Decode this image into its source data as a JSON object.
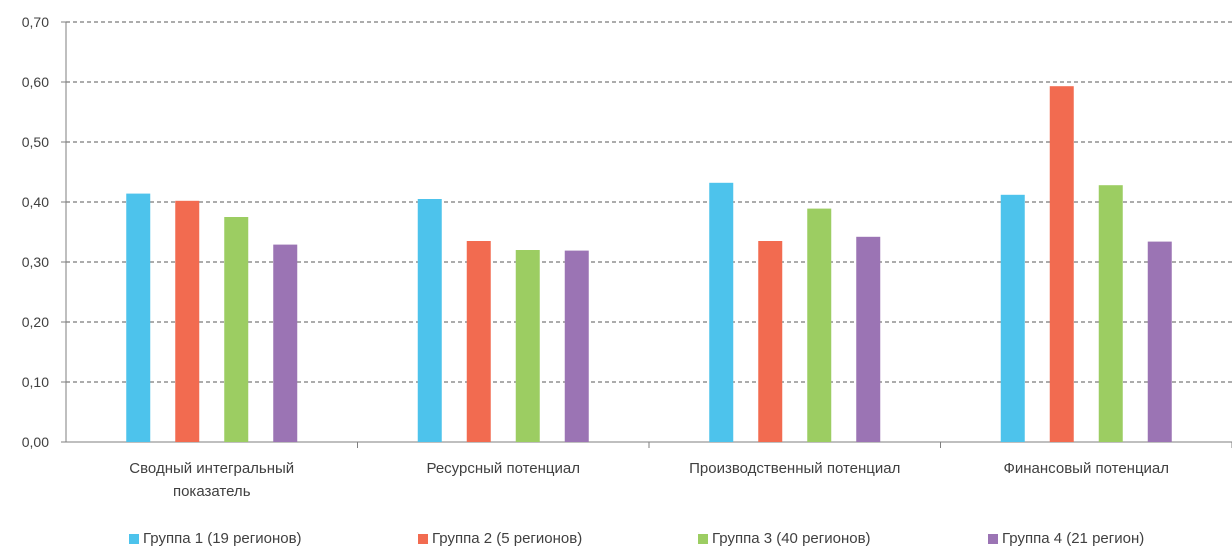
{
  "chart_data": {
    "type": "bar",
    "categories": [
      [
        "Сводный интегральный",
        "показатель"
      ],
      [
        "Ресурсный потенциал"
      ],
      [
        "Производственный потенциал"
      ],
      [
        "Финансовый потенциал"
      ]
    ],
    "series": [
      {
        "name": "Группа 1 (19 регионов)",
        "color": "#4dc3ec",
        "values": [
          0.414,
          0.405,
          0.432,
          0.412
        ]
      },
      {
        "name": "Группа 2 (5 регионов)",
        "color": "#f26b50",
        "values": [
          0.402,
          0.335,
          0.335,
          0.593
        ]
      },
      {
        "name": "Группа 3 (40 регионов)",
        "color": "#9ccd62",
        "values": [
          0.375,
          0.32,
          0.389,
          0.428
        ]
      },
      {
        "name": "Группа 4 (21 регион)",
        "color": "#9b74b4",
        "values": [
          0.329,
          0.319,
          0.342,
          0.334
        ]
      }
    ],
    "y_ticks": [
      "0,00",
      "0,10",
      "0,20",
      "0,30",
      "0,40",
      "0,50",
      "0,60",
      "0,70"
    ],
    "ylim": [
      0,
      0.7
    ],
    "grid": true,
    "grid_style": "dashed",
    "legend_position": "bottom",
    "title": "",
    "xlabel": "",
    "ylabel": ""
  }
}
